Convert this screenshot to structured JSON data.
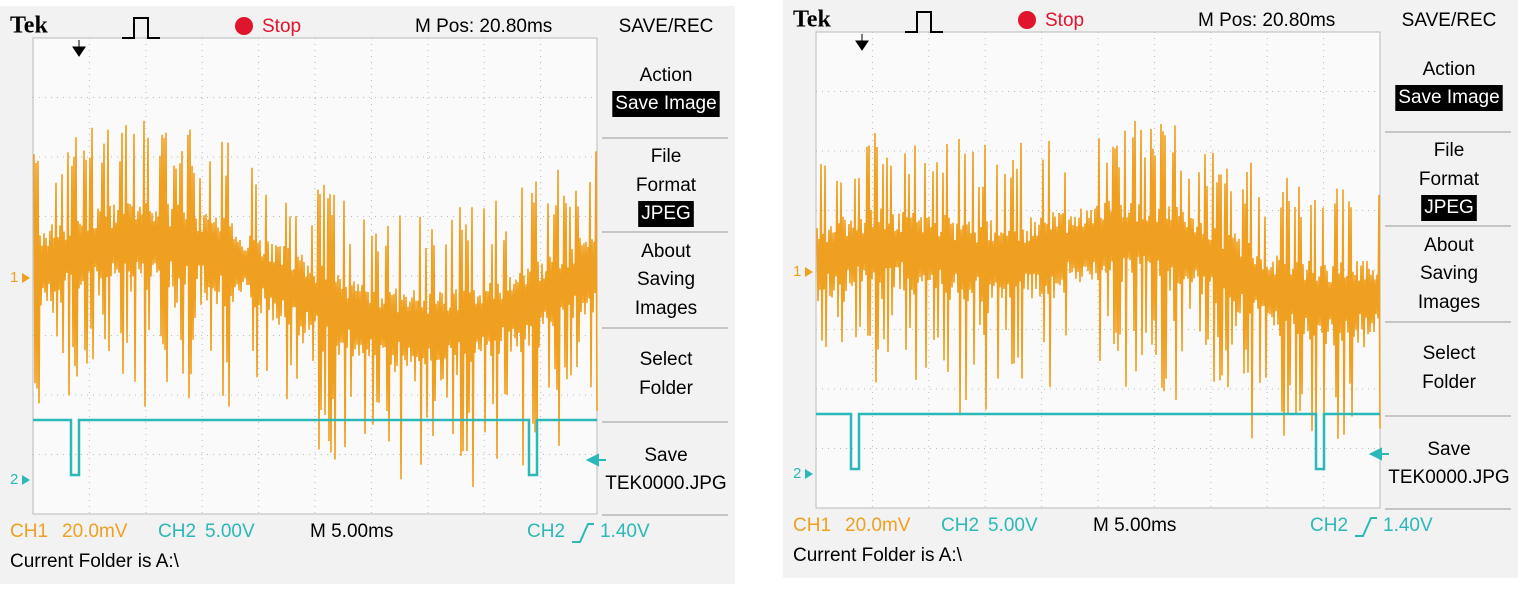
{
  "screens": [
    {
      "header": {
        "brand": "Tek",
        "state": "Stop",
        "position": "M Pos: 20.80ms",
        "menu_title": "SAVE/REC"
      },
      "menu": [
        [
          "Action",
          "Save Image"
        ],
        [
          "File",
          "Format",
          "JPEG"
        ],
        [
          "About",
          "Saving",
          "Images"
        ],
        [
          "Select",
          "Folder"
        ],
        [
          "Save",
          "TEK0000.JPG"
        ]
      ],
      "markers": {
        "ch1": "1",
        "ch2": "2"
      },
      "footer": {
        "ch1": "CH1",
        "ch1_scale": "20.0mV",
        "ch2": "CH2",
        "ch2_scale": "5.00V",
        "time_scale": "M 5.00ms",
        "trigger_source": "CH2",
        "trigger_level": "1.40V",
        "status": "Current Folder is A:\\"
      }
    },
    {
      "header": {
        "brand": "Tek",
        "state": "Stop",
        "position": "M Pos: 20.80ms",
        "menu_title": "SAVE/REC"
      },
      "menu": [
        [
          "Action",
          "Save Image"
        ],
        [
          "File",
          "Format",
          "JPEG"
        ],
        [
          "About",
          "Saving",
          "Images"
        ],
        [
          "Select",
          "Folder"
        ],
        [
          "Save",
          "TEK0000.JPG"
        ]
      ],
      "markers": {
        "ch1": "1",
        "ch2": "2"
      },
      "footer": {
        "ch1": "CH1",
        "ch1_scale": "20.0mV",
        "ch2": "CH2",
        "ch2_scale": "5.00V",
        "time_scale": "M 5.00ms",
        "trigger_source": "CH2",
        "trigger_level": "1.40V",
        "status": "Current Folder is A:\\"
      }
    }
  ]
}
